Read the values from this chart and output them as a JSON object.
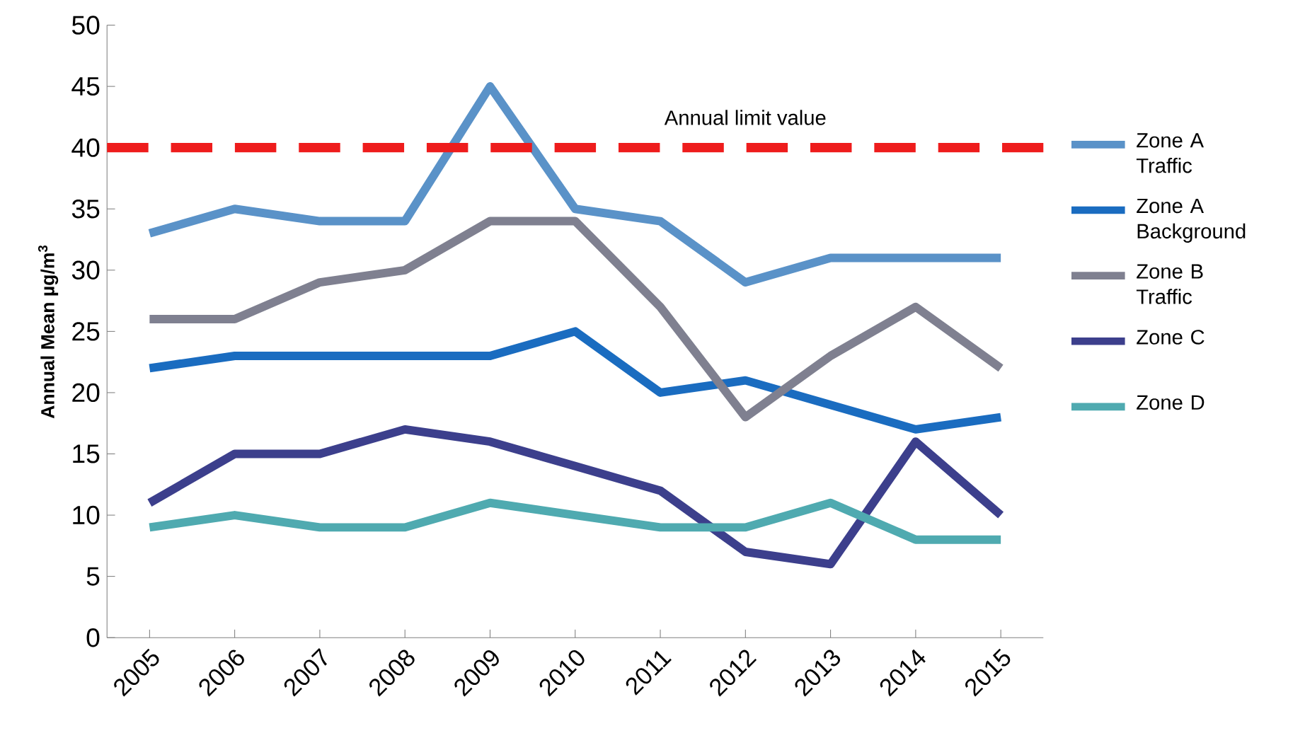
{
  "chart_data": {
    "type": "line",
    "ylabel": "Annual Mean µg/m$^{3}$",
    "categories": [
      "2005",
      "2006",
      "2007",
      "2008",
      "2009",
      "2010",
      "2011",
      "2012",
      "2013",
      "2014",
      "2015"
    ],
    "series": [
      {
        "name": "Zone A Traffic",
        "color": "#5a92c8",
        "values": [
          33,
          35,
          34,
          34,
          45,
          35,
          34,
          29,
          31,
          31,
          31
        ]
      },
      {
        "name": "Zone A Background",
        "color": "#1a6cc0",
        "values": [
          22,
          23,
          23,
          23,
          23,
          25,
          20,
          21,
          19,
          17,
          18
        ]
      },
      {
        "name": "Zone B Traffic",
        "color": "#7f8090",
        "values": [
          26,
          26,
          29,
          30,
          34,
          34,
          27,
          18,
          23,
          27,
          22
        ]
      },
      {
        "name": "Zone C",
        "color": "#3c3f8c",
        "values": [
          11,
          15,
          15,
          17,
          16,
          14,
          12,
          7,
          6,
          16,
          10
        ]
      },
      {
        "name": "Zone D",
        "color": "#4faab0",
        "values": [
          9,
          10,
          9,
          9,
          11,
          10,
          9,
          9,
          11,
          8,
          8
        ]
      }
    ],
    "ref_lines": [
      {
        "axis": "y",
        "value": 40,
        "label": "Annual limit value",
        "color": "#ee1c1c",
        "line_style": "dashed"
      }
    ],
    "ylim": [
      0,
      50
    ],
    "yticks": [
      0,
      5,
      10,
      15,
      20,
      25,
      30,
      35,
      40,
      45,
      50
    ],
    "grid": false,
    "legend": "right",
    "marker": "none",
    "line_style": "solid"
  }
}
